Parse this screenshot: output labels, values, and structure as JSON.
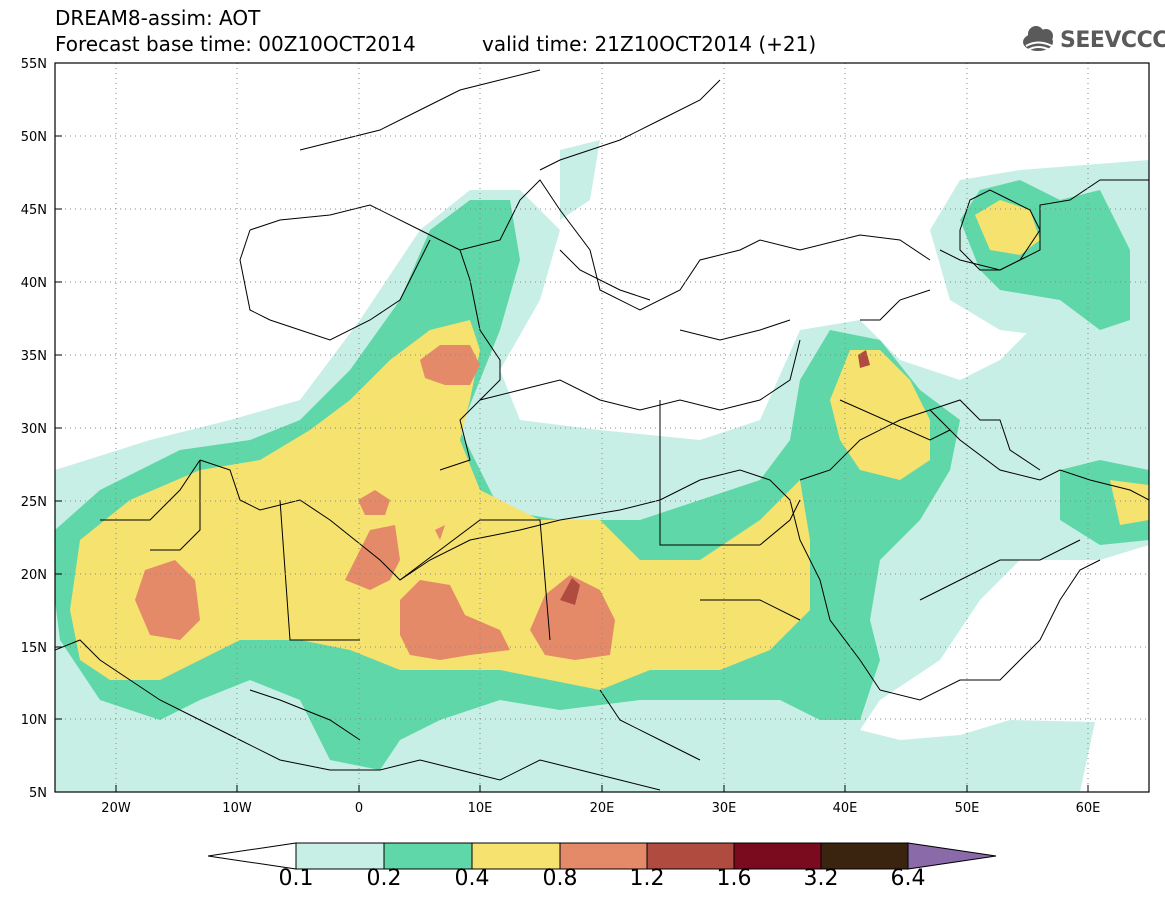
{
  "header": {
    "line1": "DREAM8-assim: AOT",
    "line2": "Forecast base time: 00Z10OCT2014",
    "line3": "valid time: 21Z10OCT2014 (+21)"
  },
  "logo": {
    "text": "SEEVCCC",
    "icon": "cloud-icon"
  },
  "axes": {
    "lat_labels": [
      "55N",
      "50N",
      "45N",
      "40N",
      "35N",
      "30N",
      "25N",
      "20N",
      "15N",
      "10N",
      "5N"
    ],
    "lon_labels": [
      "20W",
      "10W",
      "0",
      "10E",
      "20E",
      "30E",
      "40E",
      "50E",
      "60E"
    ],
    "lat_range": [
      5,
      55
    ],
    "lon_range": [
      -25,
      65
    ],
    "grid": "dotted"
  },
  "colorbar": {
    "levels": [
      "0.1",
      "0.2",
      "0.4",
      "0.8",
      "1.2",
      "1.6",
      "3.2",
      "6.4"
    ],
    "colors": {
      "below": "#ffffff",
      "c1": "#c7efe6",
      "c2": "#5fd7a8",
      "c3": "#f5e26f",
      "c4": "#e48a68",
      "c5": "#b04b3f",
      "c6": "#7a0a1e",
      "c7": "#3a2410",
      "above": "#8a6aa8"
    }
  }
}
